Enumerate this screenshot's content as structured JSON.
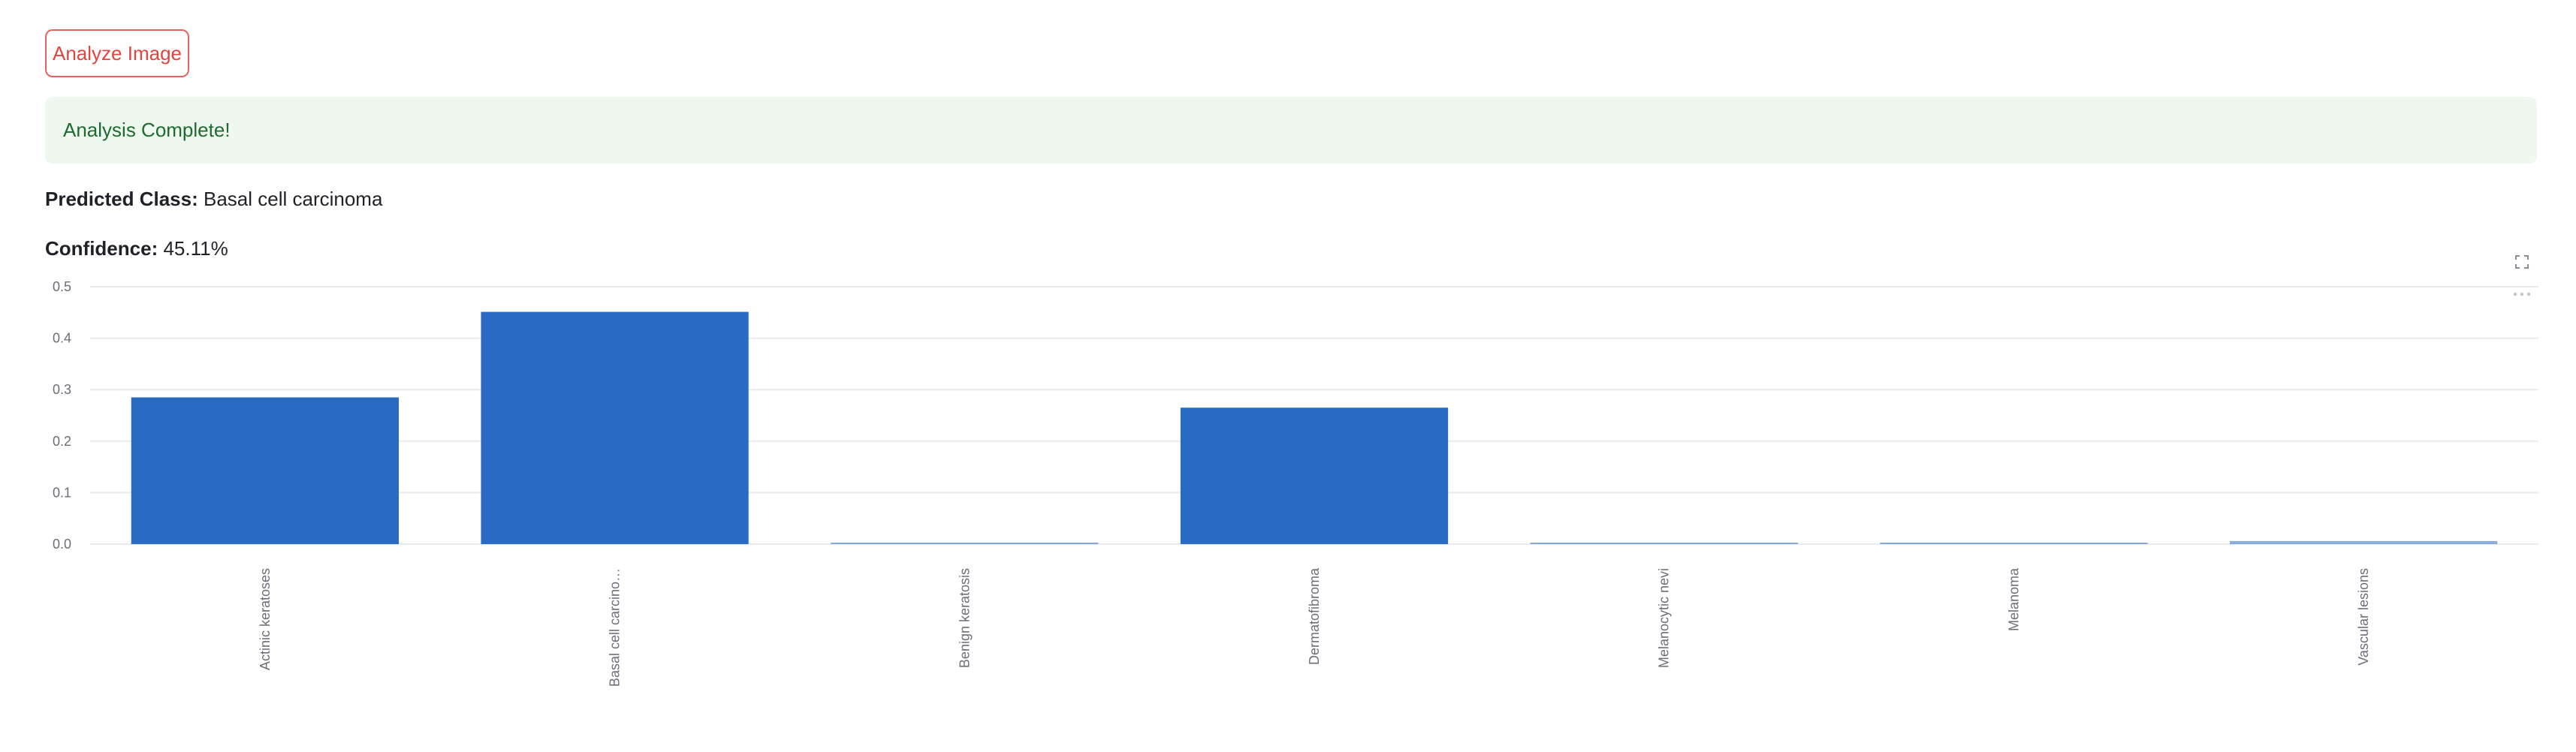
{
  "actions": {
    "analyze_label": "Analyze Image"
  },
  "status": {
    "message": "Analysis Complete!"
  },
  "result": {
    "predicted_label": "Predicted Class:",
    "predicted_value": "Basal cell carcinoma",
    "confidence_label": "Confidence:",
    "confidence_value": "45.11%"
  },
  "toolbar": {
    "fullscreen_icon": "expand-icon",
    "menu_icon": "more-horizontal-icon"
  },
  "colors": {
    "bar": "#296bc4",
    "accent": "#e0453f",
    "success_bg": "#eef8ef",
    "success_text": "#1d6b2f"
  },
  "chart_data": {
    "type": "bar",
    "categories": [
      "Actinic keratoses",
      "Basal cell carcino…",
      "Benign keratosis",
      "Dermatofibroma",
      "Melanocytic nevi",
      "Melanoma",
      "Vascular lesions"
    ],
    "values": [
      0.285,
      0.4511,
      0.002,
      0.265,
      0.001,
      0.002,
      0.006
    ],
    "yticks": [
      "0.0",
      "0.1",
      "0.2",
      "0.3",
      "0.4",
      "0.5"
    ],
    "ylim": [
      0,
      0.5
    ],
    "grid": true
  }
}
